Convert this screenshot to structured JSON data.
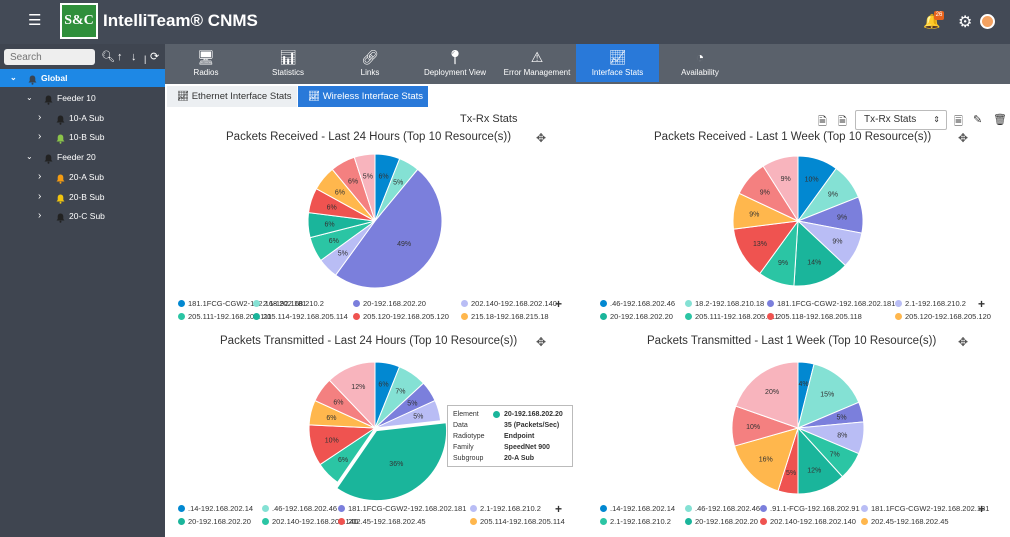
{
  "app": {
    "title": "IntelliTeam® CNMS",
    "logo": "S&C",
    "notif_count": "26"
  },
  "sidebar": {
    "search_placeholder": "Search",
    "tree": [
      {
        "label": "Global",
        "level": 0,
        "color": "#3a4450",
        "selected": true
      },
      {
        "label": "Feeder 10",
        "level": 1,
        "color": "#222"
      },
      {
        "label": "10-A Sub",
        "level": 2,
        "color": "#222"
      },
      {
        "label": "10-B Sub",
        "level": 2,
        "color": "#8bc34a"
      },
      {
        "label": "Feeder 20",
        "level": 1,
        "color": "#222"
      },
      {
        "label": "20-A Sub",
        "level": 2,
        "color": "#f39c12"
      },
      {
        "label": "20-B Sub",
        "level": 2,
        "color": "#f1c40f"
      },
      {
        "label": "20-C Sub",
        "level": 2,
        "color": "#222"
      }
    ]
  },
  "nav": {
    "tabs": [
      {
        "label": "Radios",
        "icon": "monitor-icon"
      },
      {
        "label": "Statistics",
        "icon": "bar-chart-icon"
      },
      {
        "label": "Links",
        "icon": "link-icon"
      },
      {
        "label": "Deployment View",
        "icon": "map-pin-icon"
      },
      {
        "label": "Error Management",
        "icon": "warning-icon"
      },
      {
        "label": "Interface Stats",
        "icon": "line-chart-icon",
        "active": true
      },
      {
        "label": "Availability",
        "icon": "gauge-icon"
      }
    ]
  },
  "subtabs": [
    {
      "label": "Ethernet Interface Stats"
    },
    {
      "label": "Wireless Interface Stats",
      "active": true
    }
  ],
  "stats": {
    "title": "Tx-Rx Stats",
    "select_value": "Tx-Rx Stats"
  },
  "colors": [
    "#0288d1",
    "#84e1d4",
    "#7b7fdc",
    "#b9bdf5",
    "#2bc5a4",
    "#1ab59b",
    "#ef5350",
    "#ffb74d",
    "#f48080",
    "#f8b4bd"
  ],
  "chart_data": [
    {
      "type": "pie",
      "title": "Packets Received - Last 24 Hours (Top 10 Resource(s))",
      "labels": [
        "181.1FCG-CGW2-192.168.202.181",
        "2.1-192.168.210.2",
        "20-192.168.202.20",
        "202.140-192.168.202.140",
        "205.111-192.168.205.111",
        "205.114-192.168.205.114",
        "205.120-192.168.205.120",
        "215.18-192.168.215.18"
      ],
      "slices": [
        {
          "label": "181.1FCG-CGW2-192.168.202.181",
          "value": 6,
          "color": "#0288d1"
        },
        {
          "label": "2.1-192.168.210.2",
          "value": 5,
          "color": "#84e1d4"
        },
        {
          "label": "20-192.168.202.20",
          "value": 49,
          "color": "#7b7fdc"
        },
        {
          "label": "202.140-192.168.202.140",
          "value": 5,
          "color": "#b9bdf5"
        },
        {
          "label": "205.111-192.168.205.111",
          "value": 6,
          "color": "#2bc5a4"
        },
        {
          "label": "205.114-192.168.205.114",
          "value": 6,
          "color": "#1ab59b"
        },
        {
          "label": "205.120-192.168.205.120",
          "value": 6,
          "color": "#ef5350"
        },
        {
          "label": "215.18-192.168.215.18",
          "value": 6,
          "color": "#ffb74d"
        },
        {
          "label": "",
          "value": 6,
          "color": "#f48080"
        },
        {
          "label": "",
          "value": 5,
          "color": "#f8b4bd"
        }
      ]
    },
    {
      "type": "pie",
      "title": "Packets Received - Last 1 Week (Top 10 Resource(s))",
      "labels": [
        ".46-192.168.202.46",
        "18.2-192.168.210.18",
        "181.1FCG-CGW2-192.168.202.181",
        "2.1-192.168.210.2",
        "20-192.168.202.20",
        "205.111-192.168.205.111",
        "205.118-192.168.205.118",
        "205.120-192.168.205.120"
      ],
      "slices": [
        {
          "label": ".46-192.168.202.46",
          "value": 10,
          "color": "#0288d1"
        },
        {
          "label": "18.2-192.168.210.18",
          "value": 9,
          "color": "#84e1d4"
        },
        {
          "label": "181.1FCG-CGW2-192.168.202.181",
          "value": 9,
          "color": "#7b7fdc"
        },
        {
          "label": "2.1-192.168.210.2",
          "value": 9,
          "color": "#b9bdf5"
        },
        {
          "label": "20-192.168.202.20",
          "value": 14,
          "color": "#1ab59b"
        },
        {
          "label": "205.111-192.168.205.111",
          "value": 9,
          "color": "#2bc5a4"
        },
        {
          "label": "205.118-192.168.205.118",
          "value": 13,
          "color": "#ef5350"
        },
        {
          "label": "205.120-192.168.205.120",
          "value": 9,
          "color": "#ffb74d"
        },
        {
          "label": "",
          "value": 9,
          "color": "#f48080"
        },
        {
          "label": "",
          "value": 9,
          "color": "#f8b4bd"
        }
      ]
    },
    {
      "type": "pie",
      "title": "Packets Transmitted - Last 24 Hours (Top 10 Resource(s))",
      "labels": [
        ".14-192.168.202.14",
        ".46-192.168.202.46",
        "181.1FCG-CGW2-192.168.202.181",
        "2.1-192.168.210.2",
        "20-192.168.202.20",
        "202.140-192.168.202.140",
        "202.45-192.168.202.45",
        "205.114-192.168.205.114"
      ],
      "slices": [
        {
          "label": ".14-192.168.202.14",
          "value": 6,
          "color": "#0288d1"
        },
        {
          "label": ".46-192.168.202.46",
          "value": 7,
          "color": "#84e1d4"
        },
        {
          "label": "181.1FCG-CGW2-192.168.202.181",
          "value": 5,
          "color": "#7b7fdc"
        },
        {
          "label": "2.1-192.168.210.2",
          "value": 5,
          "color": "#b9bdf5"
        },
        {
          "label": "20-192.168.202.20",
          "value": 36,
          "color": "#1ab59b",
          "explode": true
        },
        {
          "label": "202.140-192.168.202.140",
          "value": 6,
          "color": "#2bc5a4"
        },
        {
          "label": "202.45-192.168.202.45",
          "value": 10,
          "color": "#ef5350"
        },
        {
          "label": "205.114-192.168.205.114",
          "value": 6,
          "color": "#ffb74d"
        },
        {
          "label": "",
          "value": 6,
          "color": "#f48080"
        },
        {
          "label": "",
          "value": 12,
          "color": "#f8b4bd"
        }
      ]
    },
    {
      "type": "pie",
      "title": "Packets Transmitted - Last 1 Week (Top 10 Resource(s))",
      "labels": [
        ".14-192.168.202.14",
        ".46-192.168.202.46",
        ".91.1-FCG-192.168.202.91",
        "181.1FCG-CGW2-192.168.202.181",
        "2.1-192.168.210.2",
        "20-192.168.202.20",
        "202.140-192.168.202.140",
        "202.45-192.168.202.45"
      ],
      "slices": [
        {
          "label": ".14-192.168.202.14",
          "value": 4,
          "color": "#0288d1"
        },
        {
          "label": ".46-192.168.202.46",
          "value": 15,
          "color": "#84e1d4"
        },
        {
          "label": ".91.1-FCG-192.168.202.91",
          "value": 5,
          "color": "#7b7fdc"
        },
        {
          "label": "181.1FCG-CGW2-192.168.202.181",
          "value": 8,
          "color": "#b9bdf5"
        },
        {
          "label": "2.1-192.168.210.2",
          "value": 7,
          "color": "#2bc5a4"
        },
        {
          "label": "20-192.168.202.20",
          "value": 12,
          "color": "#1ab59b"
        },
        {
          "label": "202.140-192.168.202.140",
          "value": 5,
          "color": "#ef5350"
        },
        {
          "label": "202.45-192.168.202.45",
          "value": 16,
          "color": "#ffb74d"
        },
        {
          "label": "",
          "value": 10,
          "color": "#f48080"
        },
        {
          "label": "",
          "value": 20,
          "color": "#f8b4bd"
        }
      ]
    }
  ],
  "tooltip": {
    "rows": [
      {
        "key": "Element",
        "value": "20-192.168.202.20"
      },
      {
        "key": "Data",
        "value": "35 (Packets/Sec)"
      },
      {
        "key": "Radiotype",
        "value": "Endpoint"
      },
      {
        "key": "Family",
        "value": "SpeedNet 900"
      },
      {
        "key": "Subgroup",
        "value": "20-A Sub"
      }
    ]
  }
}
